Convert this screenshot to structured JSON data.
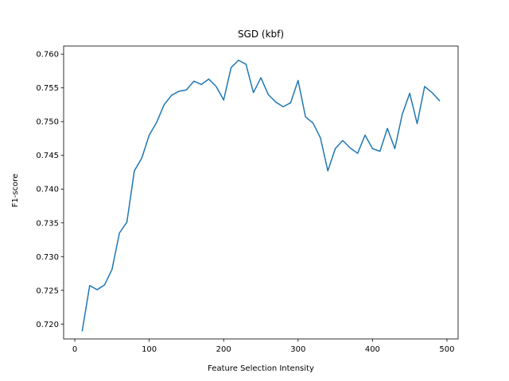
{
  "chart_data": {
    "type": "line",
    "title": "SGD (kbf)",
    "xlabel": "Feature Selection Intensity",
    "ylabel": "F1-score",
    "xlim": [
      -15,
      515
    ],
    "ylim": [
      0.7178,
      0.7612
    ],
    "grid": false,
    "xticks": [
      0,
      100,
      200,
      300,
      400,
      500
    ],
    "xtick_labels": [
      "0",
      "100",
      "200",
      "300",
      "400",
      "500"
    ],
    "yticks": [
      0.72,
      0.725,
      0.73,
      0.735,
      0.74,
      0.745,
      0.75,
      0.755,
      0.76
    ],
    "ytick_labels": [
      "0.720",
      "0.725",
      "0.730",
      "0.735",
      "0.740",
      "0.745",
      "0.750",
      "0.755",
      "0.760"
    ],
    "line_color": "#1f77b4",
    "series": [
      {
        "x": [
          10,
          20,
          30,
          40,
          50,
          60,
          70,
          80,
          90,
          100,
          110,
          120,
          130,
          140,
          150,
          160,
          170,
          180,
          190,
          200,
          210,
          220,
          230,
          240,
          250,
          260,
          270,
          280,
          290,
          300,
          310,
          320,
          330,
          340,
          350,
          360,
          370,
          380,
          390,
          400,
          410,
          420,
          430,
          440,
          450,
          460,
          470,
          480,
          490
        ],
        "values": [
          0.719,
          0.7257,
          0.7251,
          0.7258,
          0.7281,
          0.7335,
          0.7351,
          0.7427,
          0.7446,
          0.748,
          0.7499,
          0.7525,
          0.7539,
          0.7545,
          0.7547,
          0.756,
          0.7555,
          0.7563,
          0.7552,
          0.7532,
          0.758,
          0.7591,
          0.7585,
          0.7543,
          0.7565,
          0.754,
          0.7529,
          0.7522,
          0.7528,
          0.7561,
          0.7507,
          0.7498,
          0.7476,
          0.7427,
          0.746,
          0.7472,
          0.7461,
          0.7453,
          0.748,
          0.746,
          0.7456,
          0.749,
          0.746,
          0.7511,
          0.7542,
          0.7497,
          0.7552,
          0.7543,
          0.7531
        ]
      }
    ]
  }
}
